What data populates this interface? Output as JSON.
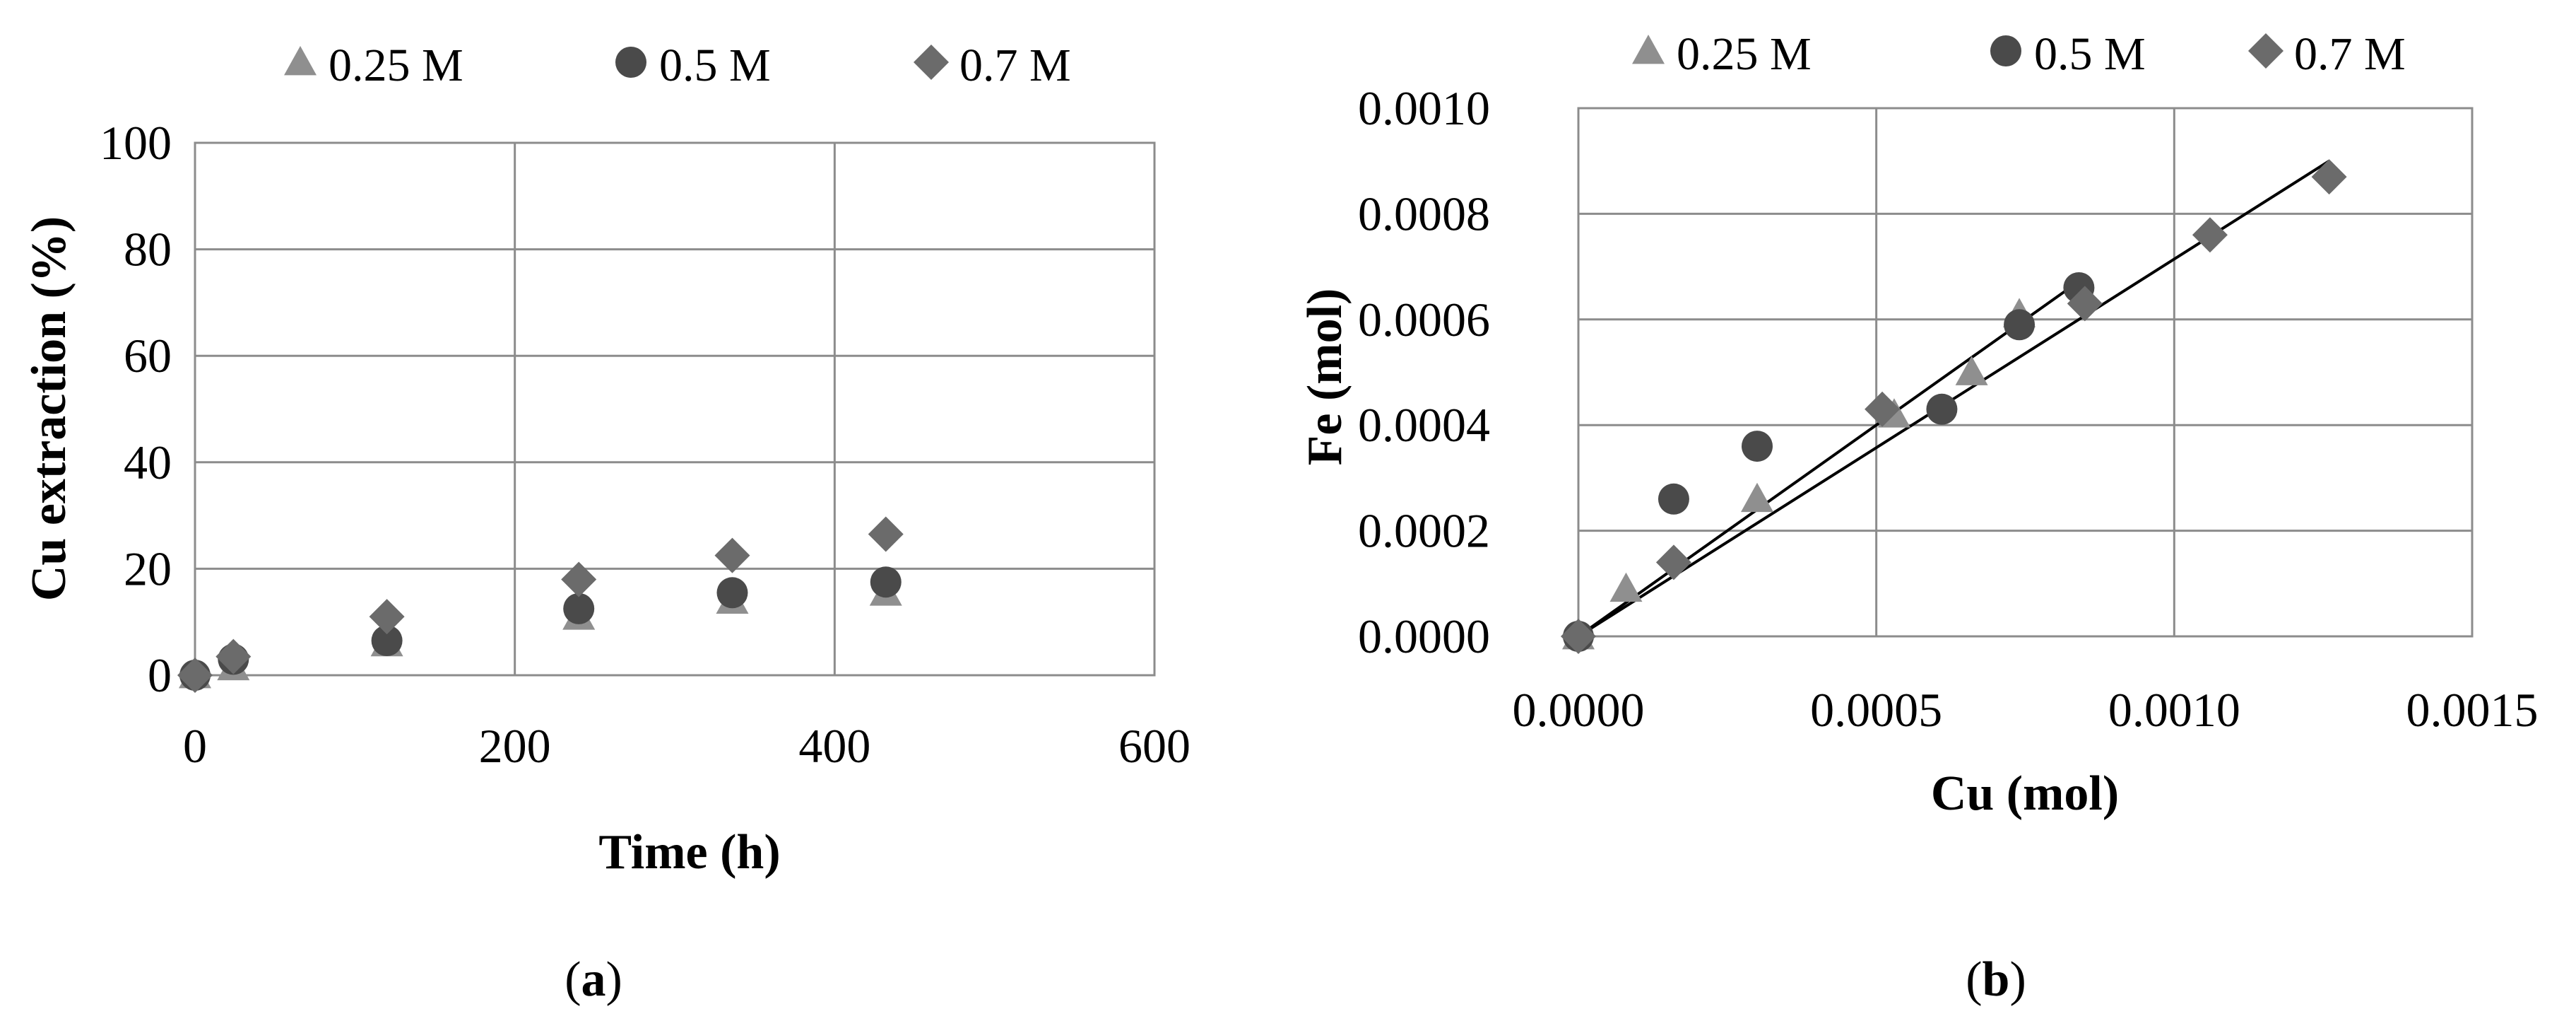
{
  "colors": {
    "grid": "#8c8c8c",
    "frame": "#8c8c8c",
    "triangle": "#8f8f8f",
    "circle": "#4a4a4a",
    "diamond": "#6b6b6b",
    "trendline": "#000000"
  },
  "chart_data": [
    {
      "type": "scatter",
      "panel": "(a)",
      "xlabel": "Time (h)",
      "ylabel": "Cu extraction (%)",
      "xlim": [
        0,
        600
      ],
      "ylim": [
        0,
        100
      ],
      "xticks": [
        "0",
        "200",
        "400",
        "600"
      ],
      "yticks": [
        "0",
        "20",
        "40",
        "60",
        "80",
        "100"
      ],
      "grid": true,
      "legend": "top",
      "series": [
        {
          "name": "0.25 M",
          "marker": "triangle",
          "x": [
            0,
            24,
            120,
            240,
            336,
            432
          ],
          "y": [
            0,
            1.5,
            6,
            11,
            14,
            15.5
          ]
        },
        {
          "name": "0.5 M",
          "marker": "circle",
          "x": [
            0,
            24,
            120,
            240,
            336,
            432
          ],
          "y": [
            0,
            3,
            6.5,
            12.5,
            15.5,
            17.5
          ]
        },
        {
          "name": "0.7 M",
          "marker": "diamond",
          "x": [
            0,
            24,
            120,
            240,
            336,
            432
          ],
          "y": [
            0,
            3.5,
            11,
            18,
            22.5,
            26.5
          ]
        }
      ]
    },
    {
      "type": "scatter",
      "panel": "(b)",
      "xlabel": "Cu (mol)",
      "ylabel": "Fe (mol)",
      "xlim": [
        0,
        0.0015
      ],
      "ylim": [
        0,
        0.001
      ],
      "xticks": [
        "0.0000",
        "0.0005",
        "0.0010",
        "0.0015"
      ],
      "yticks": [
        "0.0000",
        "0.0002",
        "0.0004",
        "0.0006",
        "0.0008",
        "0.0010"
      ],
      "grid": true,
      "legend": "top",
      "series": [
        {
          "name": "0.25 M",
          "marker": "triangle",
          "x": [
            0,
            8e-05,
            0.0003,
            0.00053,
            0.00066,
            0.00074
          ],
          "y": [
            0,
            9e-05,
            0.00026,
            0.00042,
            0.0005,
            0.00061
          ]
        },
        {
          "name": "0.5 M",
          "marker": "circle",
          "x": [
            0,
            0.00016,
            0.0003,
            0.00061,
            0.00074,
            0.00084
          ],
          "y": [
            0,
            0.00026,
            0.00036,
            0.00043,
            0.00059,
            0.00066
          ]
        },
        {
          "name": "0.7 M",
          "marker": "diamond",
          "x": [
            0,
            0.00016,
            0.00051,
            0.00085,
            0.00106,
            0.00126
          ],
          "y": [
            0,
            0.00014,
            0.00043,
            0.00063,
            0.00076,
            0.00087
          ]
        }
      ],
      "trendlines": [
        {
          "x": [
            0,
            0.00085
          ],
          "y": [
            0,
            0.00068
          ]
        },
        {
          "x": [
            0,
            0.00126
          ],
          "y": [
            0,
            0.0009
          ]
        }
      ]
    }
  ]
}
